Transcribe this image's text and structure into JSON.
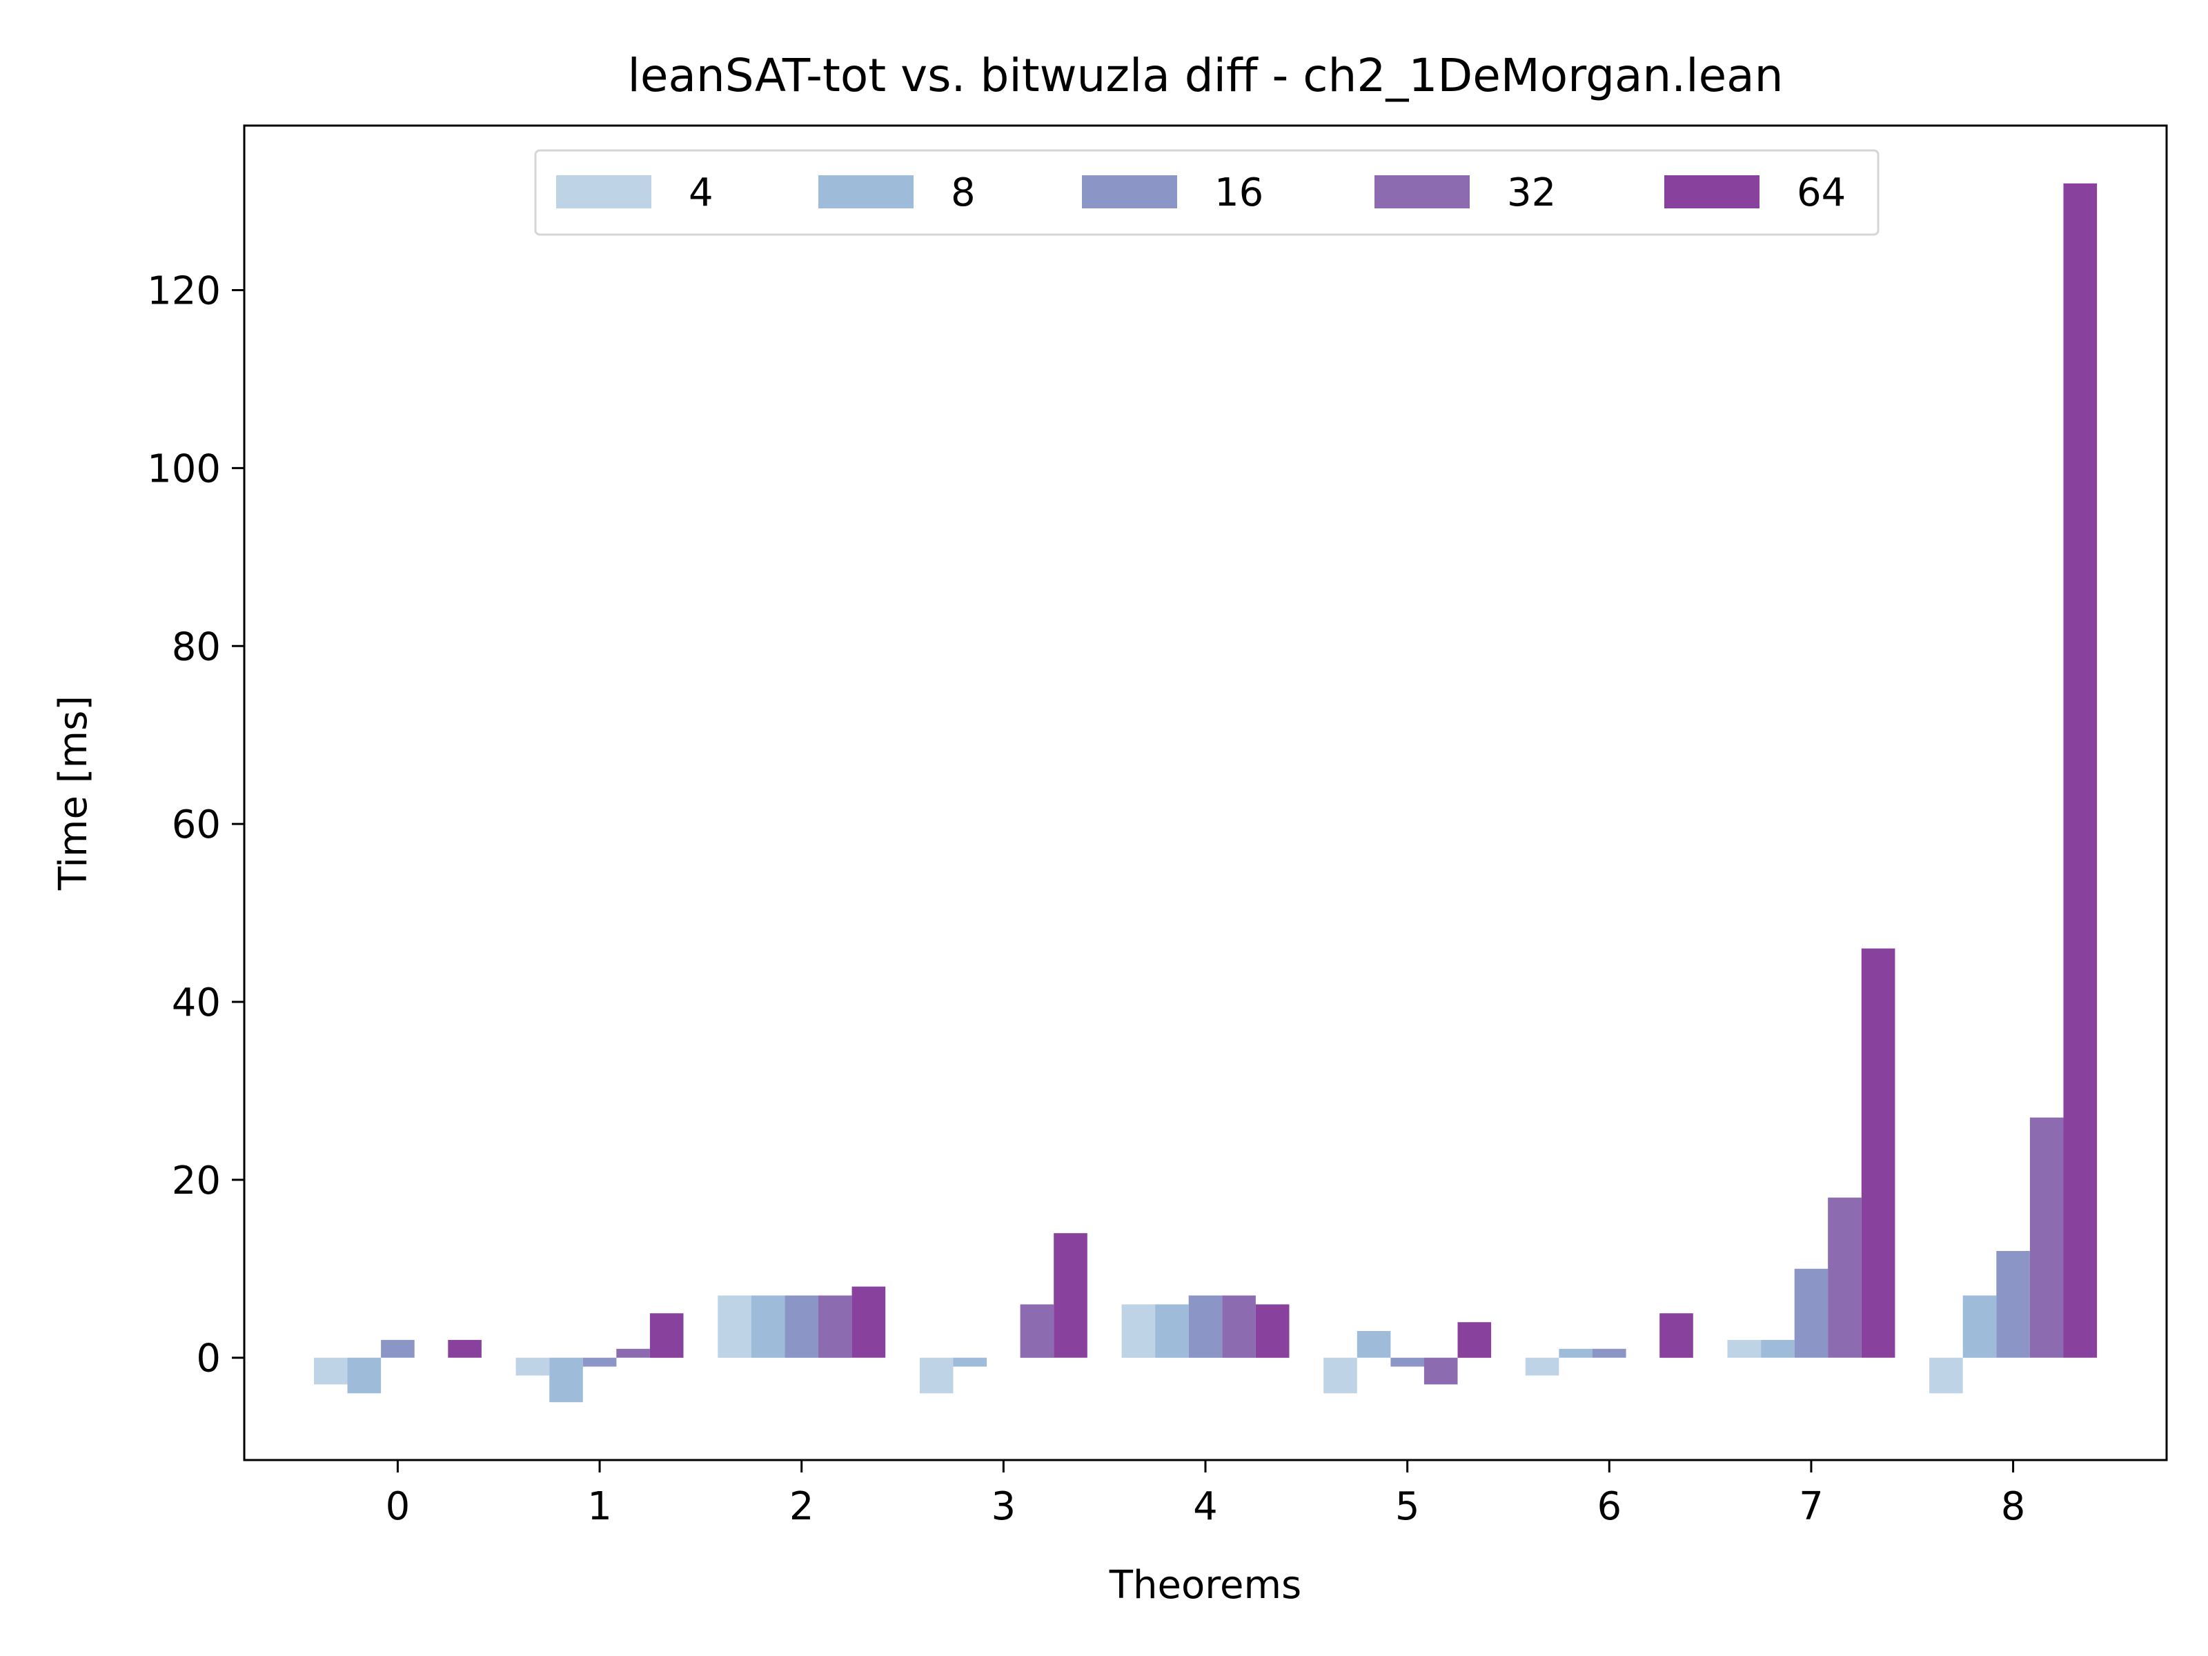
{
  "chart_data": {
    "type": "bar",
    "title": "leanSAT-tot vs. bitwuzla diff - ch2_1DeMorgan.lean",
    "xlabel": "Theorems",
    "ylabel": "Time [ms]",
    "categories": [
      "0",
      "1",
      "2",
      "3",
      "4",
      "5",
      "6",
      "7",
      "8"
    ],
    "ylim": [
      -11.5,
      138.5
    ],
    "yticks": [
      {
        "value": 0,
        "label": "0"
      },
      {
        "value": 20,
        "label": "20"
      },
      {
        "value": 40,
        "label": "40"
      },
      {
        "value": 60,
        "label": "60"
      },
      {
        "value": 80,
        "label": "80"
      },
      {
        "value": 100,
        "label": "100"
      },
      {
        "value": 120,
        "label": "120"
      }
    ],
    "grid": false,
    "legend_position": "top-center",
    "series": [
      {
        "name": "4",
        "color": "#bfd3e6",
        "values": [
          -3,
          -2,
          7,
          -4,
          6,
          -4,
          -2,
          2,
          -4
        ]
      },
      {
        "name": "8",
        "color": "#9ebcda",
        "values": [
          -4,
          -5,
          7,
          -1,
          6,
          3,
          1,
          2,
          7
        ]
      },
      {
        "name": "16",
        "color": "#8c96c6",
        "values": [
          2,
          -1,
          7,
          0,
          7,
          -1,
          1,
          10,
          12
        ]
      },
      {
        "name": "32",
        "color": "#8c6bb1",
        "values": [
          0,
          1,
          7,
          6,
          7,
          -3,
          0,
          18,
          27
        ]
      },
      {
        "name": "64",
        "color": "#88419d",
        "values": [
          2,
          5,
          8,
          14,
          6,
          4,
          5,
          46,
          132
        ]
      }
    ]
  }
}
